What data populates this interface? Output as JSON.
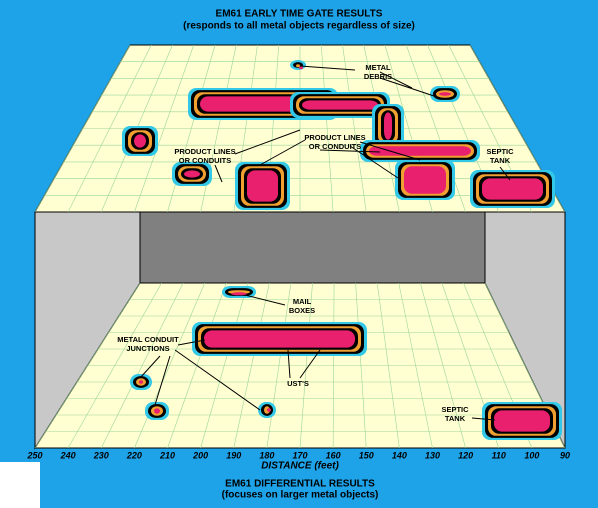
{
  "upper_panel": {
    "title": "EM61 EARLY TIME GATE RESULTS",
    "subtitle": "(responds to all metal objects regardless of size)",
    "annotations": [
      {
        "lines": [
          "METAL",
          "DEBRIS"
        ]
      },
      {
        "lines": [
          "PRODUCT LINES",
          "OR CONDUITS"
        ]
      },
      {
        "lines": [
          "PRODUCT LINES",
          "OR CONDUITS"
        ]
      },
      {
        "lines": [
          "SEPTIC",
          "TANK"
        ]
      }
    ]
  },
  "lower_panel": {
    "title": "EM61 DIFFERENTIAL RESULTS",
    "subtitle": "(focuses on larger metal objects)",
    "annotations": [
      {
        "lines": [
          "MAIL",
          "BOXES"
        ]
      },
      {
        "lines": [
          "METAL CONDUIT",
          "JUNCTIONS"
        ]
      },
      {
        "lines": [
          "UST'S"
        ]
      },
      {
        "lines": [
          "SEPTIC",
          "TANK"
        ]
      }
    ]
  },
  "x_axis": {
    "label": "DISTANCE (feet)",
    "lim": [
      250,
      90
    ],
    "ticks": [
      250,
      240,
      230,
      220,
      210,
      200,
      190,
      180,
      170,
      160,
      150,
      140,
      130,
      120,
      110,
      100,
      90
    ]
  }
}
